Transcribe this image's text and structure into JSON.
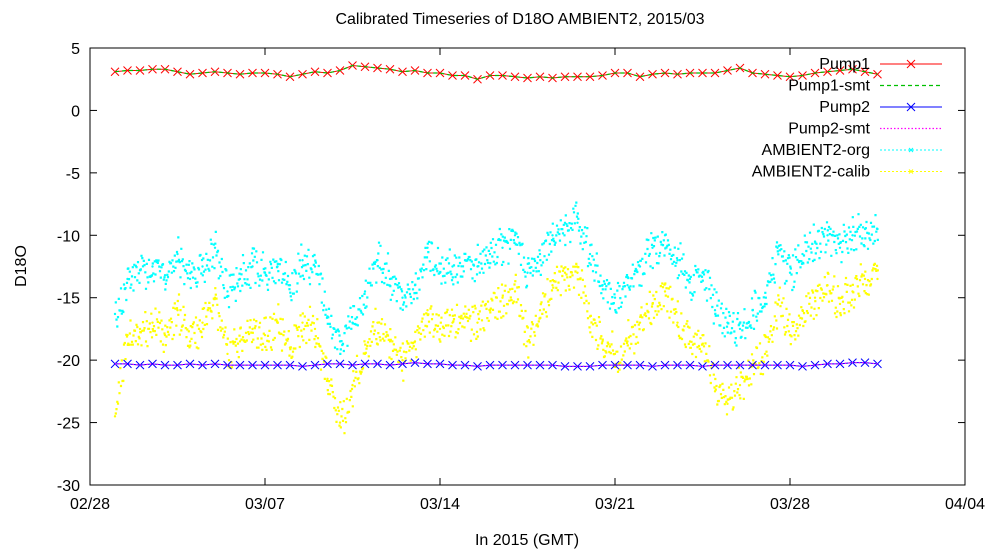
{
  "chart_data": {
    "type": "line",
    "title": "Calibrated Timeseries of D18O AMBIENT2, 2015/03",
    "xlabel": "In 2015 (GMT)",
    "ylabel": "D18O",
    "x_ticks": [
      "02/28",
      "03/07",
      "03/14",
      "03/21",
      "03/28",
      "04/04"
    ],
    "y_ticks": [
      "5",
      "0",
      "-5",
      "-10",
      "-15",
      "-20",
      "-25",
      "-30"
    ],
    "xlim": [
      "2015-02-28",
      "2015-04-04"
    ],
    "ylim": [
      -30,
      5
    ],
    "grid": false,
    "legend_position": "top-right",
    "series": [
      {
        "name": "Pump1",
        "color": "#ff0000",
        "style": "x-markers-line",
        "x": [
          "2015-03-01",
          "2015-03-01.5",
          "2015-03-02",
          "2015-03-02.5",
          "2015-03-03",
          "2015-03-03.5",
          "2015-03-04",
          "2015-03-04.5",
          "2015-03-05",
          "2015-03-05.5",
          "2015-03-06",
          "2015-03-06.5",
          "2015-03-07",
          "2015-03-07.5",
          "2015-03-08",
          "2015-03-08.5",
          "2015-03-09",
          "2015-03-09.5",
          "2015-03-10",
          "2015-03-10.5",
          "2015-03-11",
          "2015-03-11.5",
          "2015-03-12",
          "2015-03-12.5",
          "2015-03-13",
          "2015-03-13.5",
          "2015-03-14",
          "2015-03-14.5",
          "2015-03-15",
          "2015-03-15.5",
          "2015-03-16",
          "2015-03-16.5",
          "2015-03-17",
          "2015-03-17.5",
          "2015-03-18",
          "2015-03-18.5",
          "2015-03-19",
          "2015-03-19.5",
          "2015-03-20",
          "2015-03-20.5",
          "2015-03-21",
          "2015-03-21.5",
          "2015-03-22",
          "2015-03-22.5",
          "2015-03-23",
          "2015-03-23.5",
          "2015-03-24",
          "2015-03-24.5",
          "2015-03-25",
          "2015-03-25.5",
          "2015-03-26",
          "2015-03-26.5",
          "2015-03-27",
          "2015-03-27.5",
          "2015-03-28",
          "2015-03-28.5",
          "2015-03-29",
          "2015-03-29.5",
          "2015-03-30",
          "2015-03-30.5",
          "2015-03-31",
          "2015-03-31.5"
        ],
        "values": [
          3.1,
          3.2,
          3.2,
          3.3,
          3.3,
          3.1,
          2.9,
          3.0,
          3.1,
          3.0,
          2.9,
          3.0,
          3.0,
          2.9,
          2.7,
          2.9,
          3.1,
          3.0,
          3.2,
          3.6,
          3.5,
          3.4,
          3.3,
          3.1,
          3.2,
          3.0,
          3.0,
          2.8,
          2.8,
          2.5,
          2.8,
          2.8,
          2.7,
          2.6,
          2.7,
          2.6,
          2.7,
          2.7,
          2.7,
          2.8,
          3.0,
          3.0,
          2.7,
          2.9,
          3.0,
          2.9,
          3.0,
          3.0,
          3.0,
          3.2,
          3.4,
          3.0,
          2.9,
          2.8,
          2.7,
          2.8,
          3.0,
          3.1,
          3.2,
          3.3,
          3.1,
          2.9
        ]
      },
      {
        "name": "Pump1-smt",
        "color": "#00c000",
        "style": "dashed-line",
        "of": "Pump1"
      },
      {
        "name": "Pump2",
        "color": "#0000ff",
        "style": "x-markers-line",
        "x": [
          "2015-03-01",
          "2015-03-01.5",
          "2015-03-02",
          "2015-03-02.5",
          "2015-03-03",
          "2015-03-03.5",
          "2015-03-04",
          "2015-03-04.5",
          "2015-03-05",
          "2015-03-05.5",
          "2015-03-06",
          "2015-03-06.5",
          "2015-03-07",
          "2015-03-07.5",
          "2015-03-08",
          "2015-03-08.5",
          "2015-03-09",
          "2015-03-09.5",
          "2015-03-10",
          "2015-03-10.5",
          "2015-03-11",
          "2015-03-11.5",
          "2015-03-12",
          "2015-03-12.5",
          "2015-03-13",
          "2015-03-13.5",
          "2015-03-14",
          "2015-03-14.5",
          "2015-03-15",
          "2015-03-15.5",
          "2015-03-16",
          "2015-03-16.5",
          "2015-03-17",
          "2015-03-17.5",
          "2015-03-18",
          "2015-03-18.5",
          "2015-03-19",
          "2015-03-19.5",
          "2015-03-20",
          "2015-03-20.5",
          "2015-03-21",
          "2015-03-21.5",
          "2015-03-22",
          "2015-03-22.5",
          "2015-03-23",
          "2015-03-23.5",
          "2015-03-24",
          "2015-03-24.5",
          "2015-03-25",
          "2015-03-25.5",
          "2015-03-26",
          "2015-03-26.5",
          "2015-03-27",
          "2015-03-27.5",
          "2015-03-28",
          "2015-03-28.5",
          "2015-03-29",
          "2015-03-29.5",
          "2015-03-30",
          "2015-03-30.5",
          "2015-03-31",
          "2015-03-31.5"
        ],
        "values": [
          -20.3,
          -20.3,
          -20.4,
          -20.3,
          -20.4,
          -20.4,
          -20.3,
          -20.4,
          -20.3,
          -20.4,
          -20.4,
          -20.4,
          -20.4,
          -20.4,
          -20.4,
          -20.5,
          -20.4,
          -20.3,
          -20.3,
          -20.4,
          -20.3,
          -20.3,
          -20.4,
          -20.3,
          -20.2,
          -20.3,
          -20.3,
          -20.4,
          -20.4,
          -20.5,
          -20.4,
          -20.4,
          -20.4,
          -20.4,
          -20.4,
          -20.4,
          -20.5,
          -20.5,
          -20.5,
          -20.4,
          -20.4,
          -20.4,
          -20.4,
          -20.5,
          -20.4,
          -20.4,
          -20.4,
          -20.5,
          -20.4,
          -20.4,
          -20.4,
          -20.4,
          -20.4,
          -20.4,
          -20.4,
          -20.5,
          -20.4,
          -20.3,
          -20.3,
          -20.2,
          -20.2,
          -20.3
        ]
      },
      {
        "name": "Pump2-smt",
        "color": "#ff00ff",
        "style": "dotted-line",
        "of": "Pump2"
      },
      {
        "name": "AMBIENT2-org",
        "color": "#00ffff",
        "style": "dense-points",
        "x": [
          "2015-03-01",
          "2015-03-01.5",
          "2015-03-02",
          "2015-03-02.5",
          "2015-03-03",
          "2015-03-03.5",
          "2015-03-04",
          "2015-03-04.5",
          "2015-03-05",
          "2015-03-05.5",
          "2015-03-06",
          "2015-03-06.5",
          "2015-03-07",
          "2015-03-07.5",
          "2015-03-08",
          "2015-03-08.5",
          "2015-03-09",
          "2015-03-09.5",
          "2015-03-10",
          "2015-03-10.5",
          "2015-03-11",
          "2015-03-11.5",
          "2015-03-12",
          "2015-03-12.5",
          "2015-03-13",
          "2015-03-13.5",
          "2015-03-14",
          "2015-03-14.5",
          "2015-03-15",
          "2015-03-15.5",
          "2015-03-16",
          "2015-03-16.5",
          "2015-03-17",
          "2015-03-17.5",
          "2015-03-18",
          "2015-03-18.5",
          "2015-03-19",
          "2015-03-19.5",
          "2015-03-20",
          "2015-03-20.5",
          "2015-03-21",
          "2015-03-21.5",
          "2015-03-22",
          "2015-03-22.5",
          "2015-03-23",
          "2015-03-23.5",
          "2015-03-24",
          "2015-03-24.5",
          "2015-03-25",
          "2015-03-25.5",
          "2015-03-26",
          "2015-03-26.5",
          "2015-03-27",
          "2015-03-27.5",
          "2015-03-28",
          "2015-03-28.5",
          "2015-03-29",
          "2015-03-29.5",
          "2015-03-30",
          "2015-03-30.5",
          "2015-03-31",
          "2015-03-31.5"
        ],
        "values": [
          -16.3,
          -13.5,
          -12.8,
          -12.5,
          -13.2,
          -11.5,
          -13.5,
          -12.5,
          -11.0,
          -14.5,
          -13.5,
          -12.5,
          -13.0,
          -12.5,
          -14.0,
          -12.0,
          -12.5,
          -16.5,
          -18.5,
          -17.0,
          -14.5,
          -12.0,
          -13.5,
          -15.0,
          -14.0,
          -11.0,
          -13.0,
          -12.5,
          -12.0,
          -12.5,
          -11.5,
          -11.0,
          -10.0,
          -13.0,
          -11.5,
          -10.0,
          -9.0,
          -9.0,
          -11.5,
          -14.0,
          -15.0,
          -14.0,
          -12.5,
          -11.0,
          -10.0,
          -12.0,
          -13.5,
          -13.0,
          -16.0,
          -17.0,
          -17.5,
          -16.0,
          -15.5,
          -11.0,
          -13.0,
          -11.5,
          -10.5,
          -10.0,
          -11.0,
          -10.0,
          -9.5,
          -9.5
        ]
      },
      {
        "name": "AMBIENT2-calib",
        "color": "#ffff00",
        "style": "dense-points",
        "x": [
          "2015-03-01",
          "2015-03-01.5",
          "2015-03-02",
          "2015-03-02.5",
          "2015-03-03",
          "2015-03-03.5",
          "2015-03-04",
          "2015-03-04.5",
          "2015-03-05",
          "2015-03-05.5",
          "2015-03-06",
          "2015-03-06.5",
          "2015-03-07",
          "2015-03-07.5",
          "2015-03-08",
          "2015-03-08.5",
          "2015-03-09",
          "2015-03-09.5",
          "2015-03-10",
          "2015-03-10.5",
          "2015-03-11",
          "2015-03-11.5",
          "2015-03-12",
          "2015-03-12.5",
          "2015-03-13",
          "2015-03-13.5",
          "2015-03-14",
          "2015-03-14.5",
          "2015-03-15",
          "2015-03-15.5",
          "2015-03-16",
          "2015-03-16.5",
          "2015-03-17",
          "2015-03-17.5",
          "2015-03-18",
          "2015-03-18.5",
          "2015-03-19",
          "2015-03-19.5",
          "2015-03-20",
          "2015-03-20.5",
          "2015-03-21",
          "2015-03-21.5",
          "2015-03-22",
          "2015-03-22.5",
          "2015-03-23",
          "2015-03-23.5",
          "2015-03-24",
          "2015-03-24.5",
          "2015-03-25",
          "2015-03-25.5",
          "2015-03-26",
          "2015-03-26.5",
          "2015-03-27",
          "2015-03-27.5",
          "2015-03-28",
          "2015-03-28.5",
          "2015-03-29",
          "2015-03-29.5",
          "2015-03-30",
          "2015-03-30.5",
          "2015-03-31",
          "2015-03-31.5"
        ],
        "values": [
          -24.5,
          -18.0,
          -17.5,
          -17.0,
          -18.0,
          -16.0,
          -18.5,
          -17.0,
          -15.0,
          -19.5,
          -18.5,
          -17.5,
          -18.0,
          -17.0,
          -19.0,
          -17.0,
          -17.5,
          -21.5,
          -25.0,
          -22.0,
          -19.5,
          -17.0,
          -18.5,
          -20.0,
          -18.5,
          -16.0,
          -17.5,
          -17.0,
          -16.5,
          -17.0,
          -16.0,
          -15.0,
          -14.5,
          -18.5,
          -16.0,
          -14.0,
          -13.0,
          -13.0,
          -16.5,
          -18.5,
          -19.5,
          -18.5,
          -17.0,
          -15.5,
          -14.5,
          -17.0,
          -18.5,
          -18.0,
          -22.5,
          -23.5,
          -22.0,
          -20.5,
          -19.5,
          -15.5,
          -18.0,
          -16.0,
          -15.0,
          -14.0,
          -15.5,
          -14.5,
          -13.5,
          -13.5
        ]
      }
    ]
  }
}
